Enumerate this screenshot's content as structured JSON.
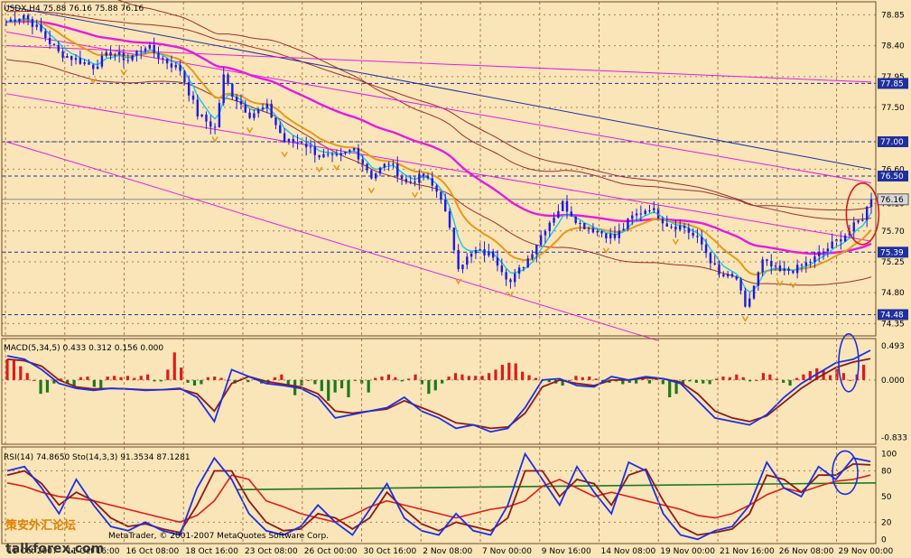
{
  "window": {
    "main_header": "USDX,H4  75.88 76.16 75.88 76.16",
    "macd_header": "MACD(5,34,5) 0.433 0.312 0.156 0.000",
    "osc_header": "RSI(14) 74.8650   Sto(14,3,3) 91.3534 87.1281",
    "copyright": "MetaTrader, © 2001-2007 MetaQuotes Software Corp.",
    "watermark": "talkforex.com",
    "watermark_cn": "策安外汇论坛"
  },
  "colors": {
    "background": "#F9E5B8",
    "grid": "#B07A4E",
    "candles": "#1A1AE6",
    "ma_fast": "#19C6E6",
    "ma_mid": "#E69A19",
    "ma_slow": "#E619E6",
    "channel": "#9B2F2F",
    "level_line": "#1F2FA0",
    "macd_up": "#E01A1A",
    "macd_down": "#1C7A1C",
    "rsi": "#E01A1A",
    "sto_main": "#1A2FE6",
    "sto_signal": "#8B1A1A",
    "highlight": "#D61A1A"
  },
  "chart_data": {
    "type": "candlestick",
    "symbol": "USDX",
    "timeframe": "H4",
    "main_axis": {
      "ticks": [
        78.85,
        78.4,
        77.95,
        77.5,
        77.0,
        76.6,
        76.1,
        75.7,
        75.25,
        74.8,
        74.35
      ],
      "ylim": [
        74.17,
        79.04
      ],
      "levels": [
        77.85,
        77.0,
        76.5,
        75.39,
        74.48
      ],
      "current_price": 76.16
    },
    "x_labels": [
      "11 Oct 2007",
      "11 Oct 16:00",
      "16 Oct 08:00",
      "18 Oct 16:00",
      "23 Oct 08:00",
      "26 Oct 00:00",
      "30 Oct 16:00",
      "2 Nov 08:00",
      "7 Nov 00:00",
      "9 Nov 16:00",
      "14 Nov 08:00",
      "19 Nov 00:00",
      "21 Nov 16:00",
      "26 Nov 08:00",
      "29 Nov 00:00"
    ],
    "close_trace": [
      [
        0,
        78.75
      ],
      [
        4,
        78.85
      ],
      [
        8,
        78.6
      ],
      [
        12,
        78.3
      ],
      [
        16,
        78.2
      ],
      [
        20,
        78.1
      ],
      [
        24,
        78.3
      ],
      [
        28,
        78.2
      ],
      [
        32,
        78.4
      ],
      [
        36,
        78.2
      ],
      [
        40,
        78.05
      ],
      [
        44,
        77.4
      ],
      [
        48,
        77.2
      ],
      [
        50,
        77.95
      ],
      [
        52,
        77.7
      ],
      [
        56,
        77.4
      ],
      [
        60,
        77.5
      ],
      [
        64,
        77.0
      ],
      [
        68,
        77.0
      ],
      [
        72,
        76.8
      ],
      [
        76,
        76.75
      ],
      [
        80,
        76.9
      ],
      [
        84,
        76.5
      ],
      [
        88,
        76.7
      ],
      [
        92,
        76.4
      ],
      [
        96,
        76.5
      ],
      [
        100,
        76.2
      ],
      [
        104,
        75.2
      ],
      [
        108,
        75.4
      ],
      [
        112,
        75.35
      ],
      [
        116,
        74.95
      ],
      [
        120,
        75.3
      ],
      [
        124,
        75.75
      ],
      [
        128,
        76.1
      ],
      [
        132,
        75.8
      ],
      [
        136,
        75.7
      ],
      [
        140,
        75.6
      ],
      [
        144,
        75.9
      ],
      [
        148,
        76.05
      ],
      [
        152,
        75.8
      ],
      [
        156,
        75.75
      ],
      [
        160,
        75.5
      ],
      [
        164,
        75.05
      ],
      [
        168,
        75.0
      ],
      [
        170,
        74.55
      ],
      [
        174,
        75.25
      ],
      [
        178,
        75.1
      ],
      [
        182,
        75.15
      ],
      [
        186,
        75.3
      ],
      [
        190,
        75.5
      ],
      [
        194,
        75.7
      ],
      [
        197,
        75.9
      ],
      [
        199,
        76.16
      ]
    ],
    "macd": {
      "ticks": [
        0.493,
        0.0,
        -0.833
      ],
      "ylim": [
        -0.93,
        0.6
      ],
      "histogram": [
        0.3,
        0.28,
        0.2,
        0.1,
        0.0,
        -0.2,
        -0.18,
        -0.05,
        0.02,
        -0.05,
        -0.08,
        0.04,
        0.05,
        -0.1,
        -0.12,
        0.05,
        0.06,
        0.04,
        0.06,
        0.03,
        0.06,
        0.08,
        -0.02,
        -0.02,
        0.15,
        0.4,
        0.18,
        -0.04,
        -0.08,
        -0.06,
        0.04,
        0.05,
        0.03,
        0.0,
        -0.05,
        0.02,
        -0.03,
        0.03,
        -0.05,
        -0.06,
        0.04,
        0.08,
        -0.1,
        -0.22,
        -0.08,
        0.0,
        -0.06,
        -0.16,
        -0.3,
        -0.18,
        -0.12,
        -0.25,
        0.0,
        -0.05,
        -0.18,
        0.03,
        0.05,
        0.08,
        0.04,
        -0.02,
        0.02,
        0.08,
        -0.06,
        -0.2,
        -0.15,
        -0.05,
        0.05,
        0.1,
        0.08,
        0.06,
        0.06,
        0.06,
        0.1,
        0.15,
        0.22,
        0.25,
        0.24,
        0.12,
        0.07,
        0.03,
        0.0,
        -0.03,
        -0.05,
        -0.08,
        0.0,
        0.06,
        0.04,
        0.05,
        0.02,
        -0.05,
        -0.04,
        -0.02,
        -0.06,
        -0.04,
        -0.05,
        0.02,
        -0.05,
        0.03,
        -0.06,
        -0.25,
        -0.2,
        -0.06,
        -0.02,
        -0.04,
        -0.05,
        -0.06,
        0.02,
        0.05,
        0.04,
        0.08,
        0.04,
        -0.02,
        0.0,
        0.1,
        0.08,
        0.02,
        -0.04,
        -0.08,
        0.03,
        0.08,
        0.13,
        0.17,
        0.14,
        0.07,
        0.16,
        0.1,
        0.0,
        0.08,
        0.22
      ],
      "macd_line": [
        0.35,
        0.3,
        0.15,
        -0.05,
        -0.12,
        -0.15,
        -0.12,
        -0.13,
        -0.15,
        -0.14,
        -0.12,
        -0.25,
        -0.6,
        0.15,
        0.05,
        -0.05,
        -0.08,
        -0.12,
        -0.25,
        -0.55,
        -0.5,
        -0.45,
        -0.4,
        -0.25,
        -0.45,
        -0.55,
        -0.7,
        -0.65,
        -0.75,
        -0.7,
        -0.4,
        0.0,
        0.02,
        -0.08,
        -0.1,
        0.05,
        0.0,
        0.05,
        0.02,
        -0.05,
        -0.3,
        -0.55,
        -0.6,
        -0.65,
        -0.5,
        -0.25,
        -0.05,
        0.1,
        0.25,
        0.3,
        0.43
      ],
      "signal_line": [
        0.3,
        0.28,
        0.2,
        0.0,
        -0.1,
        -0.13,
        -0.12,
        -0.13,
        -0.14,
        -0.14,
        -0.13,
        -0.2,
        -0.45,
        -0.05,
        0.05,
        -0.02,
        -0.06,
        -0.1,
        -0.2,
        -0.45,
        -0.48,
        -0.45,
        -0.42,
        -0.3,
        -0.4,
        -0.5,
        -0.62,
        -0.65,
        -0.7,
        -0.68,
        -0.48,
        -0.1,
        0.0,
        -0.05,
        -0.08,
        0.0,
        0.0,
        0.03,
        0.02,
        -0.03,
        -0.2,
        -0.45,
        -0.55,
        -0.6,
        -0.52,
        -0.32,
        -0.12,
        0.04,
        0.18,
        0.26,
        0.31
      ]
    },
    "oscillators": {
      "ticks": [
        100,
        80,
        50,
        20,
        0
      ],
      "ylim": [
        -5,
        108
      ],
      "level_line": 66,
      "rsi": [
        66,
        62,
        55,
        50,
        48,
        45,
        40,
        35,
        30,
        25,
        20,
        28,
        45,
        75,
        70,
        45,
        38,
        30,
        25,
        20,
        28,
        38,
        45,
        40,
        35,
        30,
        25,
        30,
        35,
        38,
        45,
        62,
        70,
        60,
        50,
        55,
        50,
        45,
        40,
        35,
        28,
        25,
        30,
        40,
        52,
        60,
        55,
        62,
        68,
        70,
        75
      ],
      "sto_main": [
        80,
        85,
        60,
        30,
        70,
        40,
        15,
        10,
        20,
        10,
        5,
        60,
        95,
        70,
        30,
        10,
        5,
        15,
        40,
        20,
        5,
        35,
        65,
        25,
        10,
        5,
        30,
        10,
        5,
        40,
        100,
        70,
        40,
        85,
        55,
        30,
        90,
        80,
        30,
        5,
        0,
        10,
        15,
        40,
        90,
        60,
        50,
        85,
        70,
        95,
        91
      ],
      "sto_signal": [
        75,
        80,
        65,
        40,
        55,
        45,
        25,
        15,
        18,
        12,
        8,
        40,
        80,
        80,
        45,
        20,
        10,
        12,
        30,
        25,
        12,
        25,
        55,
        35,
        18,
        10,
        20,
        15,
        10,
        25,
        80,
        80,
        50,
        70,
        65,
        40,
        75,
        82,
        45,
        15,
        5,
        8,
        12,
        30,
        75,
        70,
        55,
        75,
        75,
        88,
        87
      ]
    }
  }
}
